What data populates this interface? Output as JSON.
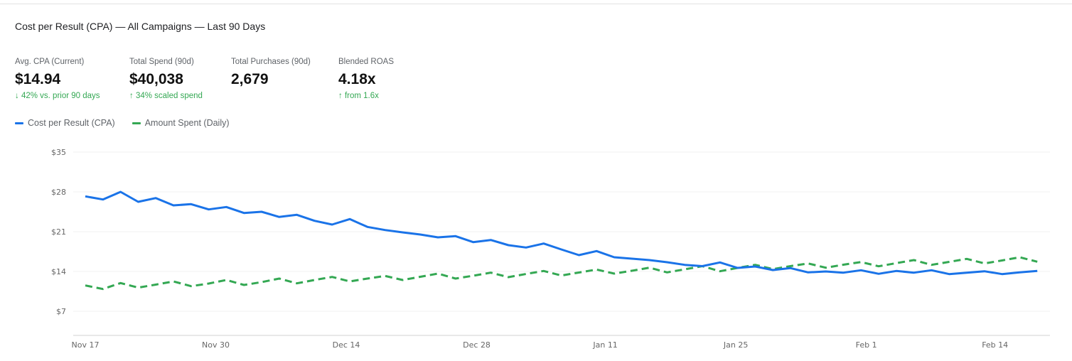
{
  "title": "Cost per Result (CPA) — All Campaigns — Last 90 Days",
  "kpis": [
    {
      "label": "Avg. CPA (Current)",
      "value": "$14.94",
      "trend": "↓ 42% vs. prior 90 days"
    },
    {
      "label": "Total Spend (90d)",
      "value": "$40,038",
      "trend": "↑ 34% scaled spend"
    },
    {
      "label": "Total Purchases (90d)",
      "value": "2,679",
      "trend": ""
    },
    {
      "label": "Blended ROAS",
      "value": "4.18x",
      "trend": "↑ from 1.6x"
    }
  ],
  "legend": [
    {
      "label": "Cost per Result (CPA)",
      "color": "#1a73e8",
      "style": "solid"
    },
    {
      "label": "Amount Spent (Daily)",
      "color": "#34a853",
      "style": "dashed"
    }
  ],
  "colors": {
    "cpa": "#1a73e8",
    "spend": "#34a853",
    "positive_trend": "#34a853"
  },
  "chart_data": {
    "type": "line",
    "title": "Cost per Result (CPA) — All Campaigns — Last 90 Days",
    "xlabel": "",
    "ylabel": "",
    "ylim": [
      2.75,
      35
    ],
    "yticks": [
      7,
      14,
      21,
      28,
      35
    ],
    "ytick_labels": [
      "$7",
      "$14",
      "$21",
      "$28",
      "$35"
    ],
    "grid": true,
    "legend_position": "top-left",
    "x_tick_labels": [
      {
        "label": "Nov 17",
        "index": 0
      },
      {
        "label": "Nov 30",
        "index": 7.4
      },
      {
        "label": "Dec 14",
        "index": 14.8
      },
      {
        "label": "Dec 28",
        "index": 22.2
      },
      {
        "label": "Jan 11",
        "index": 29.5
      },
      {
        "label": "Jan 25",
        "index": 36.9
      },
      {
        "label": "Feb 1",
        "index": 44.3
      },
      {
        "label": "Feb 14",
        "index": 51.6
      }
    ],
    "num_points": 55,
    "series": [
      {
        "name": "Cost per Result (CPA)",
        "color": "#1a73e8",
        "dashed": false,
        "values": [
          27.21,
          26.66,
          28.0,
          26.25,
          26.91,
          25.63,
          25.84,
          24.91,
          25.34,
          24.29,
          24.5,
          23.59,
          23.96,
          22.91,
          22.25,
          23.21,
          21.84,
          21.29,
          20.88,
          20.5,
          20.0,
          20.21,
          19.16,
          19.54,
          18.63,
          18.21,
          18.91,
          17.88,
          16.88,
          17.59,
          16.5,
          16.25,
          16.0,
          15.63,
          15.16,
          14.94,
          15.59,
          14.63,
          14.88,
          14.25,
          14.59,
          13.84,
          14.0,
          13.79,
          14.21,
          13.59,
          14.09,
          13.79,
          14.21,
          13.54,
          13.79,
          14.04,
          13.54,
          13.84,
          14.09
        ]
      },
      {
        "name": "Amount Spent (Daily)",
        "color": "#34a853",
        "dashed": true,
        "values": [
          11.54,
          10.91,
          11.96,
          11.16,
          11.69,
          12.25,
          11.41,
          11.88,
          12.5,
          11.63,
          12.13,
          12.75,
          11.91,
          12.5,
          13.04,
          12.25,
          12.75,
          13.21,
          12.5,
          13.06,
          13.63,
          12.75,
          13.25,
          13.79,
          13.0,
          13.56,
          14.09,
          13.29,
          13.81,
          14.34,
          13.63,
          14.13,
          14.66,
          13.84,
          14.38,
          14.94,
          14.04,
          14.63,
          15.16,
          14.41,
          14.94,
          15.41,
          14.66,
          15.19,
          15.66,
          14.91,
          15.46,
          16.0,
          15.16,
          15.69,
          16.21,
          15.41,
          15.94,
          16.5,
          15.71
        ]
      }
    ]
  }
}
